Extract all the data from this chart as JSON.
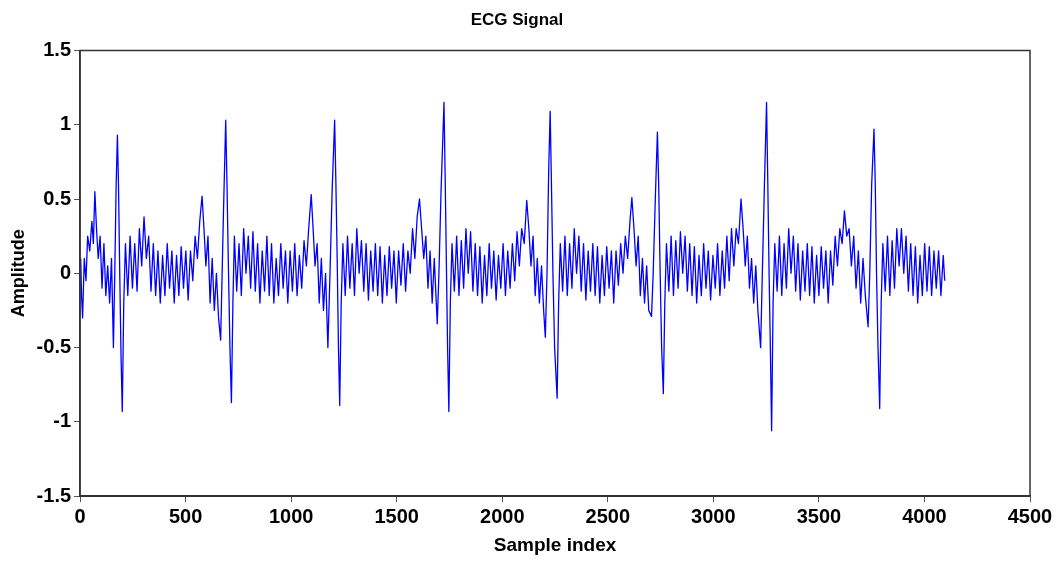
{
  "chart_data": {
    "type": "line",
    "title": "ECG Signal",
    "xlabel": "Sample index",
    "ylabel": "Amplitude",
    "color": "#0000ff",
    "marker": "none",
    "grid": false,
    "legend": false,
    "xlim": [
      0,
      4500
    ],
    "xticks": [
      0,
      500,
      1000,
      1500,
      2000,
      2500,
      3000,
      3500,
      4000,
      4500
    ],
    "ylim": [
      -1.5,
      1.5
    ],
    "yticks": [
      -1.5,
      -1,
      -0.5,
      0,
      0.5,
      1,
      1.5
    ],
    "x": [
      3,
      7,
      12,
      20,
      28,
      36,
      46,
      56,
      63,
      70,
      78,
      86,
      95,
      104,
      113,
      122,
      131,
      140,
      149,
      158,
      165,
      171,
      177,
      182,
      188,
      194,
      200,
      207,
      215,
      226,
      237,
      248,
      259,
      270,
      281,
      292,
      303,
      314,
      325,
      336,
      347,
      358,
      369,
      380,
      391,
      402,
      413,
      424,
      435,
      446,
      457,
      468,
      479,
      490,
      501,
      512,
      523,
      534,
      545,
      556,
      567,
      578,
      587,
      596,
      606,
      616,
      626,
      636,
      646,
      656,
      666,
      673,
      680,
      690,
      696,
      702,
      710,
      717,
      724,
      731,
      742,
      753,
      764,
      775,
      786,
      797,
      808,
      819,
      830,
      841,
      852,
      863,
      874,
      885,
      896,
      907,
      918,
      929,
      940,
      951,
      962,
      973,
      984,
      995,
      1006,
      1017,
      1028,
      1039,
      1050,
      1061,
      1072,
      1083,
      1095,
      1104,
      1113,
      1123,
      1133,
      1143,
      1153,
      1163,
      1174,
      1184,
      1194,
      1206,
      1212,
      1218,
      1224,
      1230,
      1237,
      1245,
      1256,
      1267,
      1278,
      1289,
      1300,
      1311,
      1322,
      1333,
      1344,
      1355,
      1366,
      1377,
      1388,
      1399,
      1410,
      1421,
      1432,
      1443,
      1454,
      1465,
      1476,
      1487,
      1498,
      1509,
      1520,
      1531,
      1542,
      1553,
      1564,
      1575,
      1586,
      1597,
      1608,
      1618,
      1628,
      1638,
      1648,
      1658,
      1668,
      1678,
      1692,
      1700,
      1710,
      1724,
      1730,
      1736,
      1741,
      1747,
      1754,
      1762,
      1773,
      1784,
      1795,
      1806,
      1817,
      1828,
      1839,
      1850,
      1861,
      1872,
      1883,
      1894,
      1905,
      1916,
      1927,
      1938,
      1949,
      1960,
      1971,
      1982,
      1993,
      2004,
      2015,
      2026,
      2037,
      2048,
      2059,
      2070,
      2081,
      2092,
      2104,
      2116,
      2126,
      2136,
      2146,
      2156,
      2166,
      2176,
      2186,
      2196,
      2204,
      2212,
      2220,
      2227,
      2233,
      2240,
      2248,
      2260,
      2267,
      2275,
      2286,
      2297,
      2308,
      2319,
      2330,
      2341,
      2352,
      2363,
      2374,
      2385,
      2396,
      2407,
      2418,
      2429,
      2440,
      2451,
      2462,
      2473,
      2484,
      2495,
      2506,
      2517,
      2528,
      2539,
      2550,
      2561,
      2572,
      2583,
      2594,
      2605,
      2614,
      2624,
      2634,
      2644,
      2654,
      2664,
      2674,
      2684,
      2694,
      2707,
      2715,
      2725,
      2735,
      2741,
      2748,
      2755,
      2763,
      2770,
      2778,
      2789,
      2800,
      2811,
      2822,
      2833,
      2844,
      2855,
      2866,
      2877,
      2888,
      2899,
      2910,
      2921,
      2932,
      2943,
      2954,
      2965,
      2976,
      2987,
      2998,
      3009,
      3020,
      3031,
      3042,
      3053,
      3064,
      3075,
      3086,
      3097,
      3108,
      3119,
      3131,
      3141,
      3151,
      3161,
      3171,
      3181,
      3191,
      3201,
      3211,
      3224,
      3232,
      3242,
      3252,
      3258,
      3264,
      3270,
      3276,
      3283,
      3291,
      3302,
      3313,
      3324,
      3335,
      3346,
      3357,
      3368,
      3379,
      3390,
      3401,
      3412,
      3423,
      3434,
      3445,
      3456,
      3467,
      3478,
      3489,
      3500,
      3511,
      3522,
      3533,
      3544,
      3555,
      3566,
      3577,
      3588,
      3599,
      3610,
      3621,
      3632,
      3643,
      3654,
      3665,
      3676,
      3687,
      3698,
      3709,
      3720,
      3733,
      3741,
      3750,
      3761,
      3767,
      3773,
      3780,
      3788,
      3795,
      3803,
      3814,
      3825,
      3836,
      3847,
      3858,
      3869,
      3880,
      3891,
      3902,
      3913,
      3924,
      3935,
      3946,
      3957,
      3968,
      3979,
      3990,
      4001,
      4012,
      4023,
      4034,
      4045,
      4056,
      4067,
      4078,
      4089,
      4096
    ],
    "values": [
      0.1,
      -0.15,
      -0.3,
      0.1,
      -0.05,
      0.25,
      0.15,
      0.35,
      0.2,
      0.55,
      0.3,
      0.1,
      0.25,
      -0.1,
      0.2,
      -0.15,
      0.05,
      -0.2,
      0.1,
      -0.5,
      0.05,
      0.6,
      0.93,
      0.6,
      0.0,
      -0.55,
      -0.93,
      -0.2,
      0.2,
      -0.15,
      0.25,
      -0.1,
      0.2,
      -0.12,
      0.3,
      0.05,
      0.38,
      0.1,
      0.25,
      -0.12,
      0.2,
      -0.15,
      0.15,
      -0.2,
      0.12,
      -0.15,
      0.2,
      -0.1,
      0.15,
      -0.2,
      0.12,
      -0.15,
      0.18,
      -0.1,
      0.15,
      -0.18,
      0.15,
      -0.05,
      0.25,
      0.1,
      0.35,
      0.52,
      0.3,
      0.05,
      0.25,
      -0.2,
      0.1,
      -0.25,
      0.0,
      -0.3,
      -0.45,
      0.0,
      0.45,
      1.03,
      0.6,
      0.1,
      -0.5,
      -0.87,
      -0.2,
      0.25,
      -0.12,
      0.2,
      -0.15,
      0.3,
      0.0,
      0.25,
      -0.1,
      0.28,
      -0.12,
      0.2,
      -0.2,
      0.15,
      -0.12,
      0.25,
      -0.15,
      0.2,
      -0.2,
      0.1,
      -0.15,
      0.2,
      -0.1,
      0.15,
      -0.2,
      0.15,
      -0.12,
      0.2,
      -0.15,
      0.12,
      -0.1,
      0.22,
      0.05,
      0.3,
      0.53,
      0.3,
      0.05,
      0.2,
      -0.2,
      0.1,
      -0.25,
      0.0,
      -0.5,
      0.0,
      0.55,
      1.03,
      0.6,
      0.1,
      -0.5,
      -0.89,
      -0.2,
      0.2,
      -0.15,
      0.25,
      -0.1,
      0.2,
      -0.15,
      0.3,
      0.0,
      0.22,
      -0.12,
      0.2,
      -0.18,
      0.15,
      -0.12,
      0.2,
      -0.15,
      0.18,
      -0.2,
      0.12,
      -0.15,
      0.18,
      -0.1,
      0.15,
      -0.2,
      0.15,
      -0.08,
      0.2,
      -0.12,
      0.15,
      0.0,
      0.3,
      0.1,
      0.38,
      0.5,
      0.3,
      0.1,
      0.25,
      -0.1,
      0.15,
      -0.2,
      0.1,
      -0.34,
      0.0,
      0.55,
      1.15,
      0.6,
      0.0,
      -0.5,
      -0.93,
      -0.2,
      0.2,
      -0.12,
      0.25,
      -0.15,
      0.22,
      -0.1,
      0.3,
      0.0,
      0.28,
      -0.12,
      0.2,
      -0.15,
      0.18,
      -0.2,
      0.12,
      -0.15,
      0.2,
      -0.1,
      0.15,
      -0.18,
      0.12,
      -0.1,
      0.2,
      -0.15,
      0.15,
      -0.1,
      0.2,
      -0.05,
      0.28,
      0.05,
      0.3,
      0.2,
      0.49,
      0.3,
      0.05,
      0.25,
      -0.15,
      0.1,
      -0.2,
      0.05,
      -0.25,
      -0.43,
      0.0,
      0.7,
      1.09,
      0.6,
      0.0,
      -0.5,
      -0.84,
      -0.2,
      0.2,
      -0.12,
      0.25,
      -0.15,
      0.2,
      -0.1,
      0.3,
      0.0,
      0.25,
      -0.12,
      0.2,
      -0.18,
      0.15,
      -0.12,
      0.2,
      -0.15,
      0.18,
      -0.2,
      0.12,
      -0.15,
      0.18,
      -0.1,
      0.15,
      -0.2,
      0.15,
      -0.08,
      0.2,
      0.0,
      0.25,
      0.1,
      0.35,
      0.51,
      0.3,
      0.05,
      0.25,
      -0.15,
      0.1,
      -0.2,
      0.05,
      -0.25,
      -0.29,
      0.0,
      0.5,
      0.95,
      0.6,
      0.0,
      -0.5,
      -0.81,
      -0.2,
      0.2,
      -0.12,
      0.25,
      -0.15,
      0.22,
      -0.1,
      0.28,
      0.0,
      0.25,
      -0.12,
      0.2,
      -0.15,
      0.18,
      -0.2,
      0.12,
      -0.15,
      0.2,
      -0.1,
      0.15,
      -0.18,
      0.12,
      -0.1,
      0.2,
      -0.15,
      0.15,
      -0.1,
      0.25,
      -0.05,
      0.3,
      0.05,
      0.3,
      0.2,
      0.5,
      0.3,
      0.05,
      0.25,
      -0.1,
      0.1,
      -0.2,
      0.05,
      -0.25,
      -0.5,
      0.0,
      0.6,
      1.15,
      0.6,
      0.0,
      -0.5,
      -1.06,
      -0.2,
      0.2,
      -0.12,
      0.25,
      -0.15,
      0.2,
      -0.1,
      0.3,
      0.0,
      0.25,
      -0.12,
      0.2,
      -0.18,
      0.15,
      -0.12,
      0.2,
      -0.15,
      0.18,
      -0.2,
      0.12,
      -0.15,
      0.18,
      -0.1,
      0.15,
      -0.2,
      0.15,
      -0.08,
      0.25,
      0.05,
      0.3,
      0.2,
      0.42,
      0.25,
      0.3,
      0.05,
      0.25,
      -0.1,
      0.15,
      -0.2,
      0.1,
      -0.15,
      -0.36,
      0.0,
      0.6,
      0.97,
      0.6,
      0.0,
      -0.5,
      -0.91,
      -0.2,
      0.2,
      -0.12,
      0.25,
      -0.15,
      0.22,
      -0.1,
      0.3,
      0.05,
      0.3,
      0.0,
      0.25,
      -0.12,
      0.2,
      -0.15,
      0.18,
      -0.2,
      0.12,
      -0.15,
      0.2,
      -0.12,
      0.18,
      -0.15,
      0.15,
      -0.1,
      0.15,
      -0.15,
      0.12,
      -0.05
    ]
  }
}
